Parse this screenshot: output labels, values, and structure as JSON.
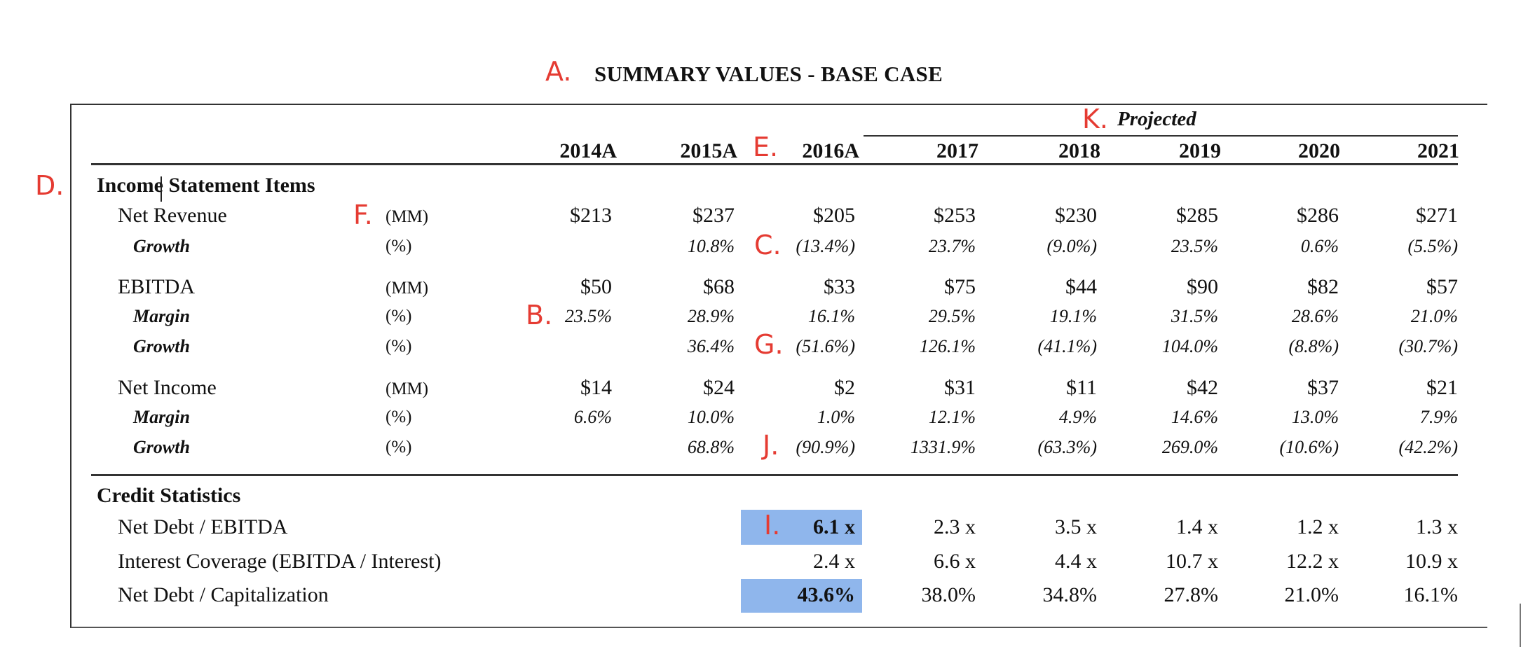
{
  "title": "SUMMARY VALUES - BASE CASE",
  "markers": [
    "A.",
    "B.",
    "C.",
    "D.",
    "E.",
    "F.",
    "G.",
    "I.",
    "J.",
    "K."
  ],
  "projected_label": "Projected",
  "years": [
    "2014A",
    "2015A",
    "2016A",
    "2017",
    "2018",
    "2019",
    "2020",
    "2021"
  ],
  "sections": {
    "income": "Income Statement Items",
    "credit": "Credit Statistics"
  },
  "rows": [
    {
      "label": "Net Revenue",
      "unit": "(MM)",
      "values": [
        "$213",
        "$237",
        "$205",
        "$253",
        "$230",
        "$285",
        "$286",
        "$271"
      ]
    },
    {
      "label": "Growth",
      "unit": "(%)",
      "values": [
        "",
        "10.8%",
        "(13.4%)",
        "23.7%",
        "(9.0%)",
        "23.5%",
        "0.6%",
        "(5.5%)"
      ]
    },
    {
      "label": "EBITDA",
      "unit": "(MM)",
      "values": [
        "$50",
        "$68",
        "$33",
        "$75",
        "$44",
        "$90",
        "$82",
        "$57"
      ]
    },
    {
      "label": "Margin",
      "unit": "(%)",
      "values": [
        "23.5%",
        "28.9%",
        "16.1%",
        "29.5%",
        "19.1%",
        "31.5%",
        "28.6%",
        "21.0%"
      ]
    },
    {
      "label": "Growth",
      "unit": "(%)",
      "values": [
        "",
        "36.4%",
        "(51.6%)",
        "126.1%",
        "(41.1%)",
        "104.0%",
        "(8.8%)",
        "(30.7%)"
      ]
    },
    {
      "label": "Net Income",
      "unit": "(MM)",
      "values": [
        "$14",
        "$24",
        "$2",
        "$31",
        "$11",
        "$42",
        "$37",
        "$21"
      ]
    },
    {
      "label": "Margin",
      "unit": "(%)",
      "values": [
        "6.6%",
        "10.0%",
        "1.0%",
        "12.1%",
        "4.9%",
        "14.6%",
        "13.0%",
        "7.9%"
      ]
    },
    {
      "label": "Growth",
      "unit": "(%)",
      "values": [
        "",
        "68.8%",
        "(90.9%)",
        "1331.9%",
        "(63.3%)",
        "269.0%",
        "(10.6%)",
        "(42.2%)"
      ]
    }
  ],
  "credit_rows": [
    {
      "label": "Net Debt / EBITDA",
      "values": [
        "6.1 x",
        "2.3 x",
        "3.5 x",
        "1.4 x",
        "1.2 x",
        "1.3 x"
      ]
    },
    {
      "label": "Interest Coverage (EBITDA / Interest)",
      "values": [
        "2.4 x",
        "6.6 x",
        "4.4 x",
        "10.7 x",
        "12.2 x",
        "10.9 x"
      ]
    },
    {
      "label": "Net Debt / Capitalization",
      "values": [
        "43.6%",
        "38.0%",
        "34.8%",
        "27.8%",
        "21.0%",
        "16.1%"
      ]
    }
  ],
  "colors": {
    "marker": "#e53b32",
    "highlight": "#8fb6ec"
  }
}
